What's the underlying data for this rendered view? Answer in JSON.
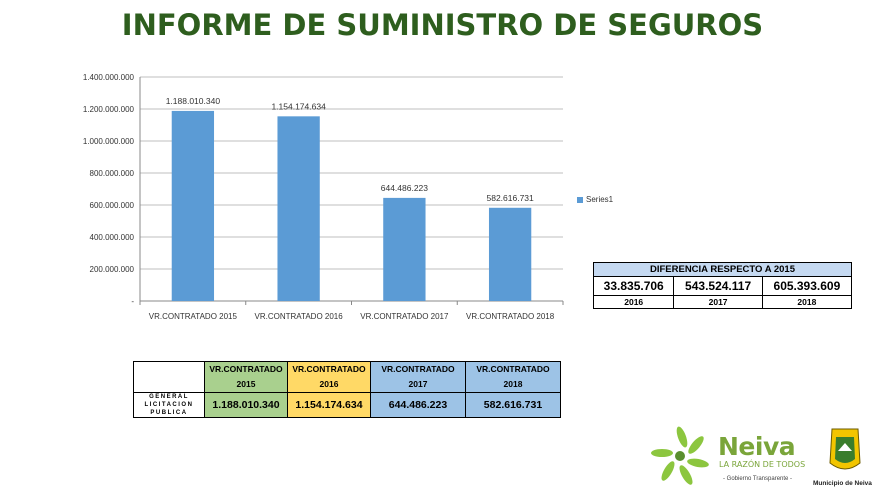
{
  "title": "INFORME DE SUMINISTRO DE SEGUROS",
  "chart_data": {
    "type": "bar",
    "categories": [
      "VR.CONTRATADO 2015",
      "VR.CONTRATADO 2016",
      "VR.CONTRATADO 2017",
      "VR.CONTRATADO 2018"
    ],
    "series": [
      {
        "name": "Series1",
        "values": [
          1188010340,
          1154174634,
          644486223,
          582616731
        ]
      }
    ],
    "data_labels": [
      "1.188.010.340",
      "1.154.174.634",
      "644.486.223",
      "582.616.731"
    ],
    "yticks": [
      "1.400.000.000",
      "1.200.000.000",
      "1.000.000.000",
      "800.000.000",
      "600.000.000",
      "400.000.000",
      "200.000.000",
      "-"
    ],
    "ylim": [
      0,
      1400000000
    ],
    "bar_color": "#5b9bd5",
    "grid": true,
    "legend_position": "right"
  },
  "difference_table": {
    "header": "DIFERENCIA RESPECTO A 2015",
    "values": [
      "33.835.706",
      "543.524.117",
      "605.393.609"
    ],
    "years": [
      "2016",
      "2017",
      "2018"
    ]
  },
  "summary_table": {
    "headers": [
      {
        "line1": "VR.CONTRATADO",
        "line2": "2015"
      },
      {
        "line1": "VR.CONTRATADO",
        "line2": "2016"
      },
      {
        "line1": "VR.CONTRATADO",
        "line2": "2017"
      },
      {
        "line1": "VR.CONTRATADO",
        "line2": "2018"
      }
    ],
    "row_label": [
      "GENERAL",
      "LICITACION",
      "PUBLICA"
    ],
    "values": [
      "1.188.010.340",
      "1.154.174.634",
      "644.486.223",
      "582.616.731"
    ],
    "colors": {
      "green": "#a9d08e",
      "orange": "#ffd966",
      "blue": "#9dc3e6"
    }
  },
  "logos": {
    "brand": "Neiva",
    "tagline": "LA RAZÓN DE TODOS",
    "sub": "- Gobierno Transparente -",
    "municipality": "Municipio de Neiva"
  }
}
